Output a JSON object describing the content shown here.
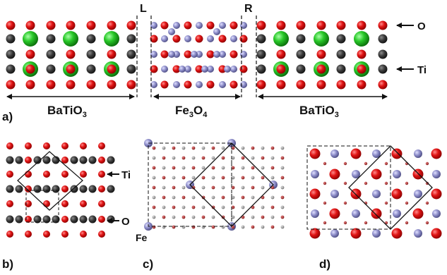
{
  "panel_a": {
    "panel_label": "a)",
    "interface_left": "L",
    "interface_right": "R",
    "region_left": {
      "base": "BaTiO",
      "sub": "3"
    },
    "region_middle": {
      "fe": "Fe",
      "fe_sub": "3",
      "o": "O",
      "o_sub": "4"
    },
    "region_right": {
      "base": "BaTiO",
      "sub": "3"
    },
    "arrow_o": "O",
    "arrow_ti": "Ti"
  },
  "panel_b": {
    "panel_label": "b)",
    "arrow_ti": "Ti",
    "arrow_o": "O"
  },
  "panel_c": {
    "panel_label": "c)",
    "fe_label": "Fe"
  },
  "panel_d": {
    "panel_label": "d)"
  },
  "colors": {
    "oxygen": "#e01414",
    "titanium": "#3a3a3a",
    "barium": "#28c828",
    "iron": "#8c8cc8",
    "small_red": "#b03030",
    "small_grey": "#a0a0a0"
  }
}
